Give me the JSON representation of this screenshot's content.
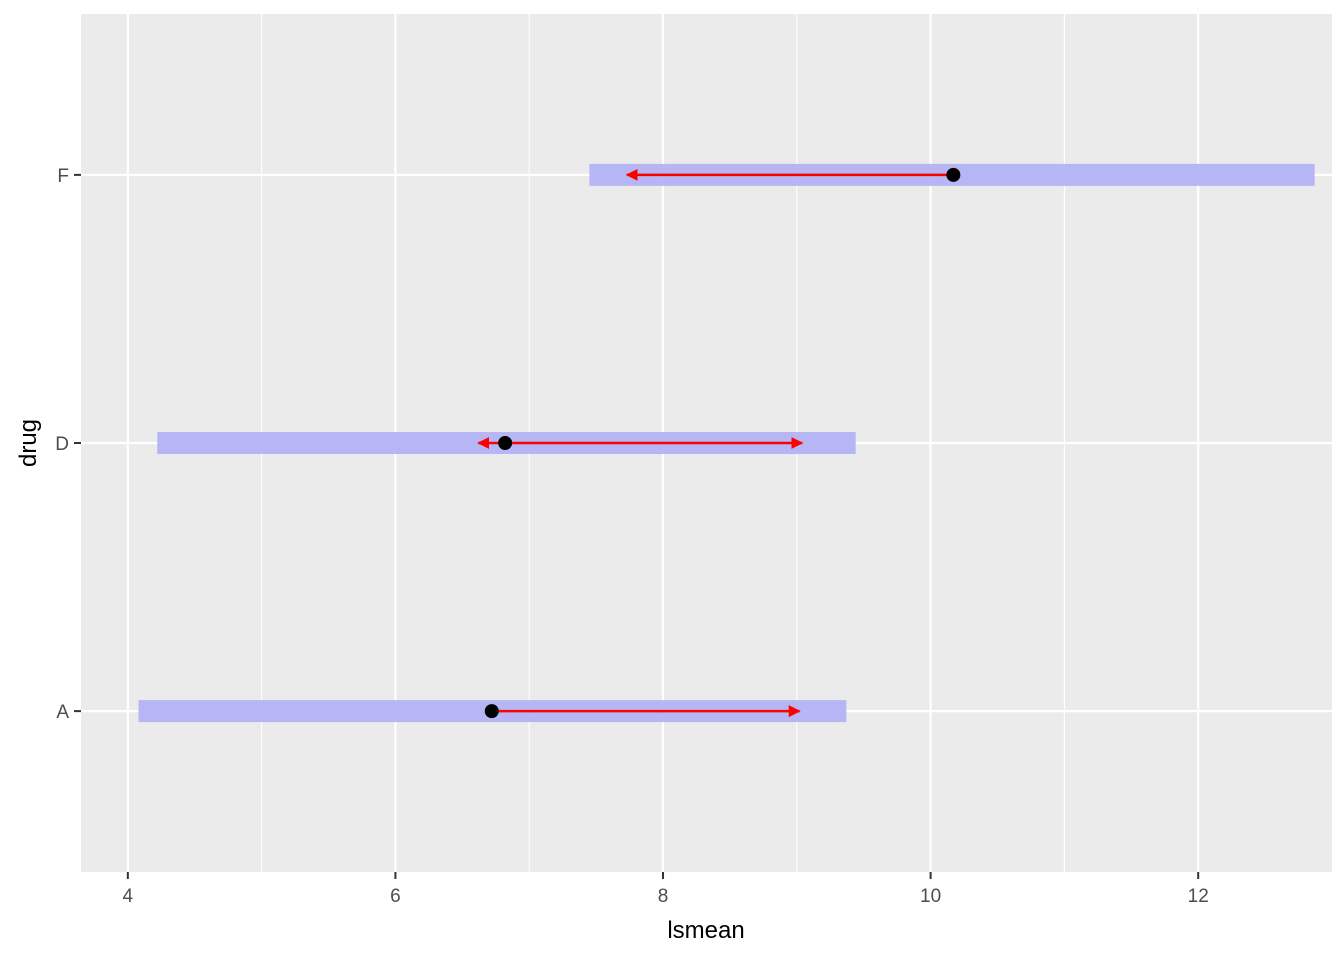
{
  "chart_data": {
    "type": "interval",
    "xlabel": "lsmean",
    "ylabel": "drug",
    "xlim": [
      3.65,
      13.0
    ],
    "x_ticks": [
      4,
      6,
      8,
      10,
      12
    ],
    "x_tick_labels": [
      "4",
      "6",
      "8",
      "10",
      "12"
    ],
    "categories": [
      "A",
      "D",
      "F"
    ],
    "grid": true,
    "series": [
      {
        "values": [
          {
            "drug": "A",
            "lsmean": 6.72,
            "lower": 4.08,
            "upper": 9.37,
            "arrow_left": 6.72,
            "arrow_right": 9.02
          },
          {
            "drug": "D",
            "lsmean": 6.82,
            "lower": 4.22,
            "upper": 9.44,
            "arrow_left": 6.62,
            "arrow_right": 9.04
          },
          {
            "drug": "F",
            "lsmean": 10.17,
            "lower": 7.45,
            "upper": 12.87,
            "arrow_left": 7.73,
            "arrow_right": 10.17
          }
        ]
      }
    ],
    "colors": {
      "panel_bg": "#ebebeb",
      "grid": "#ffffff",
      "ci_bar": "#b3b3f5",
      "arrow": "#ff0000",
      "point": "#000000",
      "tick": "#333333",
      "tick_text": "#4d4d4d"
    }
  }
}
